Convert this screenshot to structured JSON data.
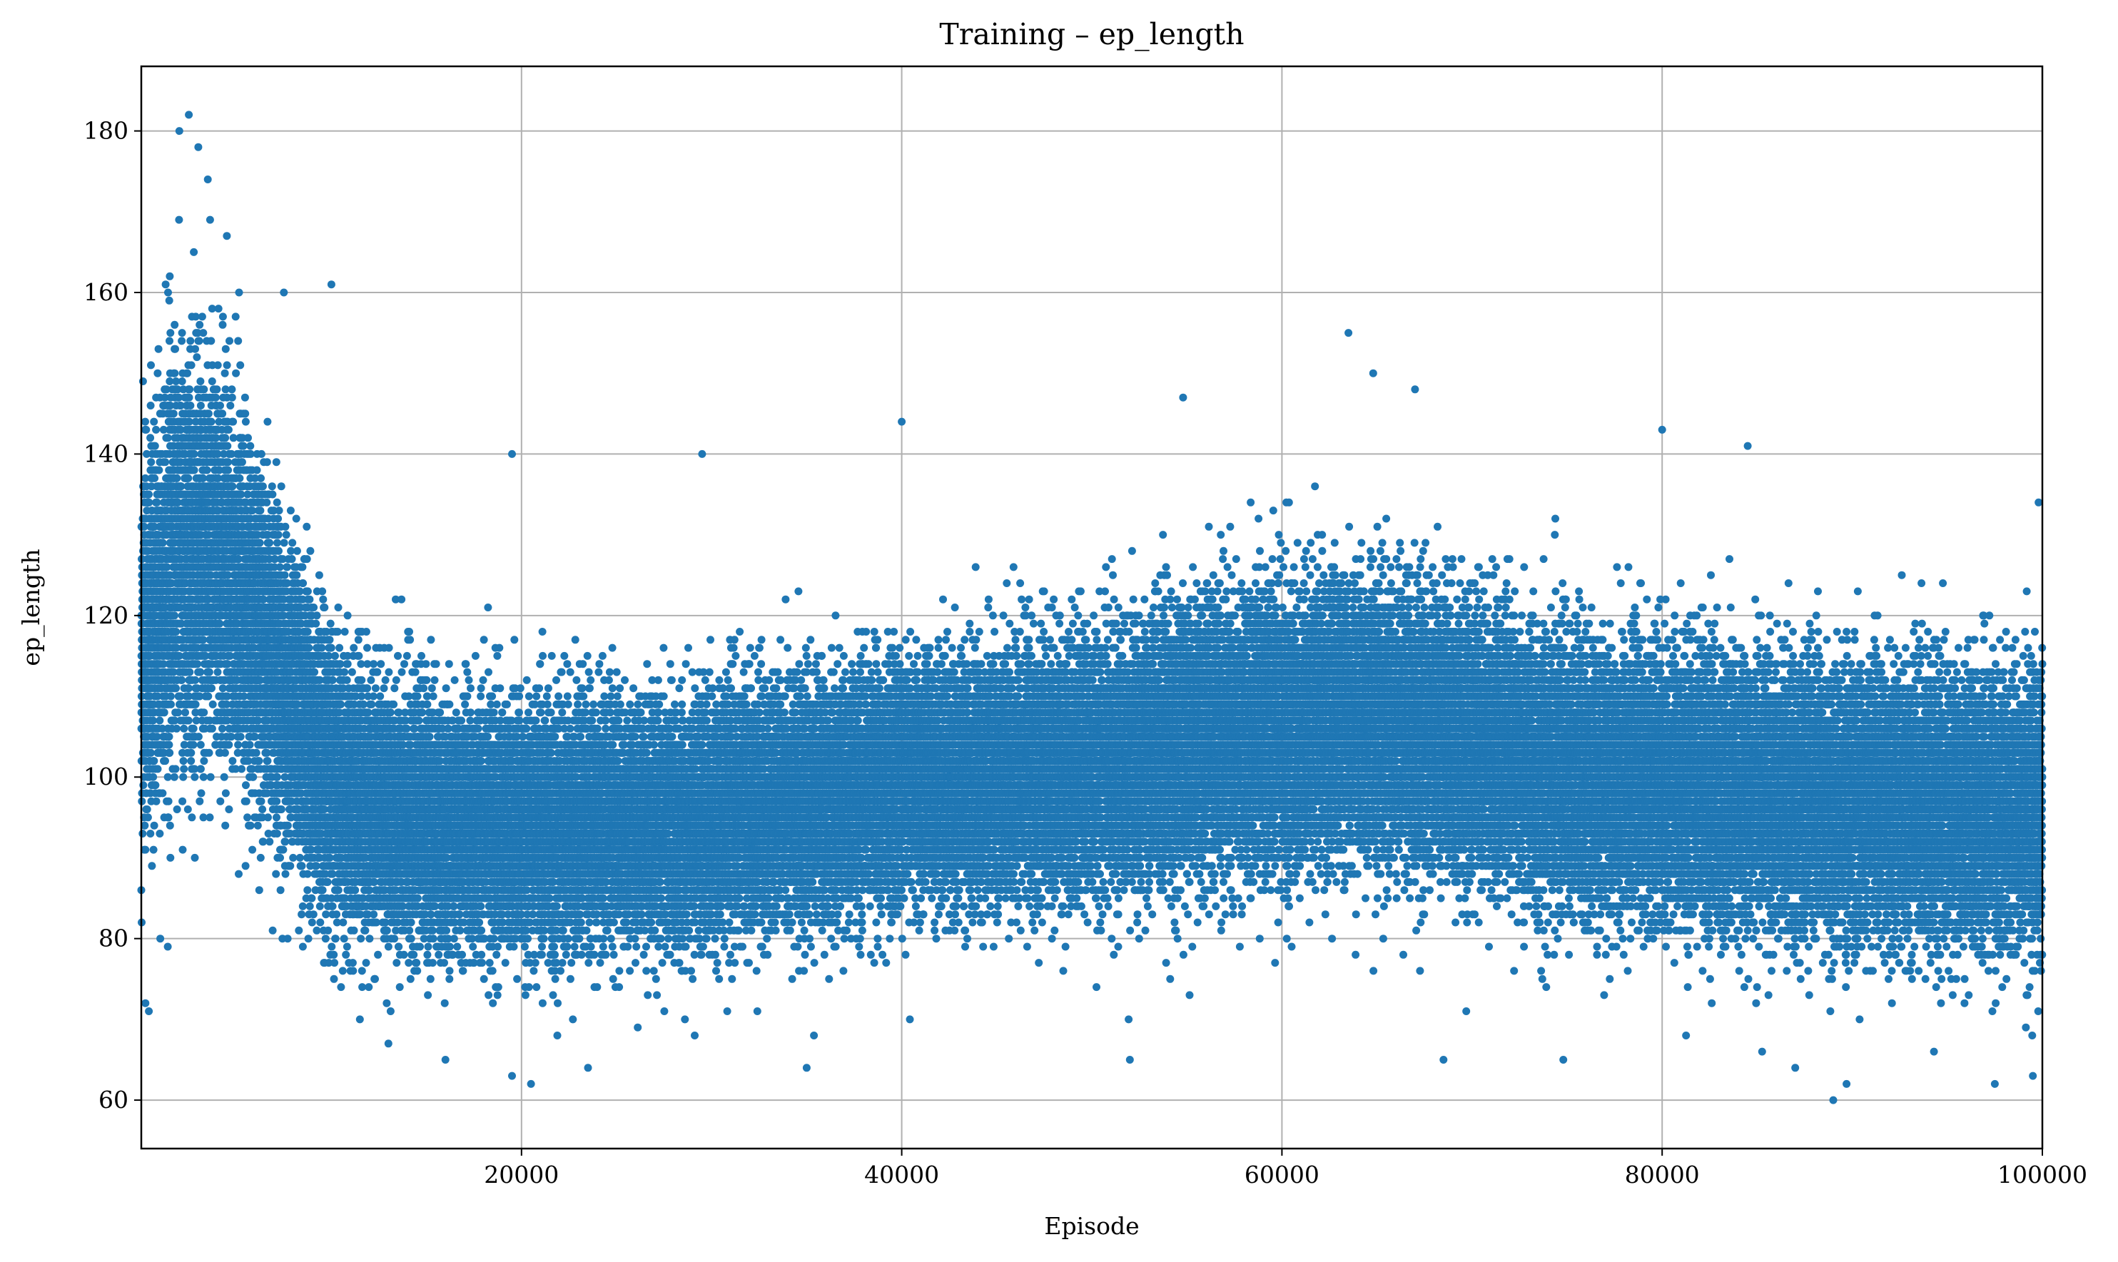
{
  "chart_data": {
    "type": "scatter",
    "title": "Training – ep_length",
    "xlabel": "Episode",
    "ylabel": "ep_length",
    "xlim": [
      0,
      100000
    ],
    "ylim": [
      54,
      188
    ],
    "xticks": [
      20000,
      40000,
      60000,
      80000,
      100000
    ],
    "yticks": [
      60,
      80,
      100,
      120,
      140,
      160,
      180
    ],
    "grid": true,
    "legend": "none",
    "point_color": "#1f77b4",
    "n_points_approx": 100000,
    "series": [
      {
        "trend": {
          "x": [
            0,
            2000,
            4000,
            6000,
            8000,
            10000,
            12000,
            14000,
            16000,
            20000,
            25000,
            30000,
            35000,
            40000,
            45000,
            50000,
            55000,
            60000,
            65000,
            70000,
            75000,
            80000,
            85000,
            90000,
            95000,
            100000
          ],
          "center": [
            116,
            128,
            127,
            118,
            108,
            100,
            96,
            95,
            94,
            94,
            94,
            95,
            97,
            99,
            100,
            101,
            104,
            106,
            107,
            104,
            100,
            99,
            98,
            97,
            96,
            96
          ],
          "spread": [
            11,
            12,
            11,
            10,
            9,
            8,
            7.5,
            7,
            7,
            7,
            7,
            7,
            7,
            7,
            7,
            7.5,
            8,
            8.5,
            8.5,
            8,
            8,
            8,
            8,
            8,
            8,
            8
          ]
        },
        "outliers": [
          {
            "x": 1000,
            "y": 80
          },
          {
            "x": 2000,
            "y": 180
          },
          {
            "x": 2500,
            "y": 182
          },
          {
            "x": 3000,
            "y": 178
          },
          {
            "x": 3500,
            "y": 174
          },
          {
            "x": 4500,
            "y": 167
          },
          {
            "x": 7500,
            "y": 160
          },
          {
            "x": 10000,
            "y": 161
          },
          {
            "x": 13000,
            "y": 67
          },
          {
            "x": 16000,
            "y": 65
          },
          {
            "x": 19500,
            "y": 140
          },
          {
            "x": 19500,
            "y": 63
          },
          {
            "x": 20500,
            "y": 62
          },
          {
            "x": 23500,
            "y": 64
          },
          {
            "x": 29500,
            "y": 140
          },
          {
            "x": 35000,
            "y": 64
          },
          {
            "x": 40000,
            "y": 144
          },
          {
            "x": 52000,
            "y": 65
          },
          {
            "x": 54800,
            "y": 147
          },
          {
            "x": 63500,
            "y": 155
          },
          {
            "x": 64800,
            "y": 150
          },
          {
            "x": 67000,
            "y": 148
          },
          {
            "x": 68500,
            "y": 65
          },
          {
            "x": 74800,
            "y": 65
          },
          {
            "x": 80000,
            "y": 143
          },
          {
            "x": 84500,
            "y": 141
          },
          {
            "x": 87000,
            "y": 64
          },
          {
            "x": 89000,
            "y": 60
          },
          {
            "x": 89700,
            "y": 62
          },
          {
            "x": 97500,
            "y": 62
          },
          {
            "x": 99500,
            "y": 63
          },
          {
            "x": 99800,
            "y": 134
          }
        ]
      }
    ]
  }
}
